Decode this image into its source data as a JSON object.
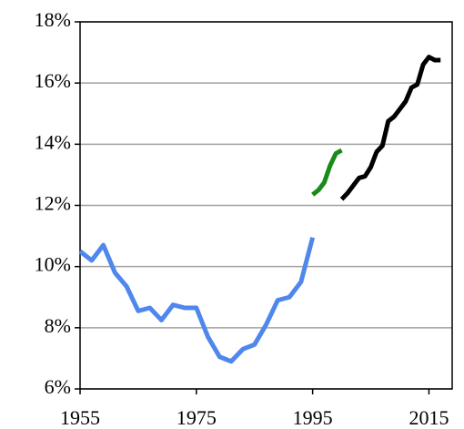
{
  "chart_data": {
    "type": "line",
    "xlim": [
      1955,
      2019
    ],
    "xticks": [
      1955,
      1975,
      1995,
      2015
    ],
    "ylim": [
      6,
      18
    ],
    "yticks": [
      {
        "value": 6,
        "label": "6%"
      },
      {
        "value": 8,
        "label": "8%"
      },
      {
        "value": 10,
        "label": "10%"
      },
      {
        "value": 12,
        "label": "12%"
      },
      {
        "value": 14,
        "label": "14%"
      },
      {
        "value": 16,
        "label": "16%"
      },
      {
        "value": 18,
        "label": "18%"
      }
    ],
    "grid": true,
    "series": [
      {
        "color": "#4f87ec",
        "x": [
          1955,
          1957,
          1959,
          1961,
          1963,
          1965,
          1967,
          1969,
          1971,
          1973,
          1975,
          1977,
          1979,
          1981,
          1983,
          1985,
          1987,
          1989,
          1991,
          1993,
          1995
        ],
        "values": [
          10.5,
          10.2,
          10.7,
          9.8,
          9.35,
          8.55,
          8.65,
          8.25,
          8.75,
          8.65,
          8.65,
          7.7,
          7.05,
          6.9,
          7.3,
          7.45,
          8.1,
          8.9,
          9.0,
          9.5,
          10.95
        ]
      },
      {
        "color": "#1a8a1a",
        "x": [
          1995,
          1996,
          1997,
          1998,
          1999,
          2000
        ],
        "values": [
          12.35,
          12.5,
          12.75,
          13.3,
          13.7,
          13.8
        ]
      },
      {
        "color": "#000000",
        "x": [
          2000,
          2001,
          2002,
          2003,
          2004,
          2005,
          2006,
          2007,
          2008,
          2009,
          2010,
          2011,
          2012,
          2013,
          2014,
          2015,
          2016,
          2017
        ],
        "values": [
          12.2,
          12.4,
          12.65,
          12.9,
          12.95,
          13.25,
          13.75,
          13.95,
          14.75,
          14.9,
          15.15,
          15.4,
          15.85,
          15.95,
          16.6,
          16.85,
          16.75,
          16.75
        ]
      }
    ]
  }
}
